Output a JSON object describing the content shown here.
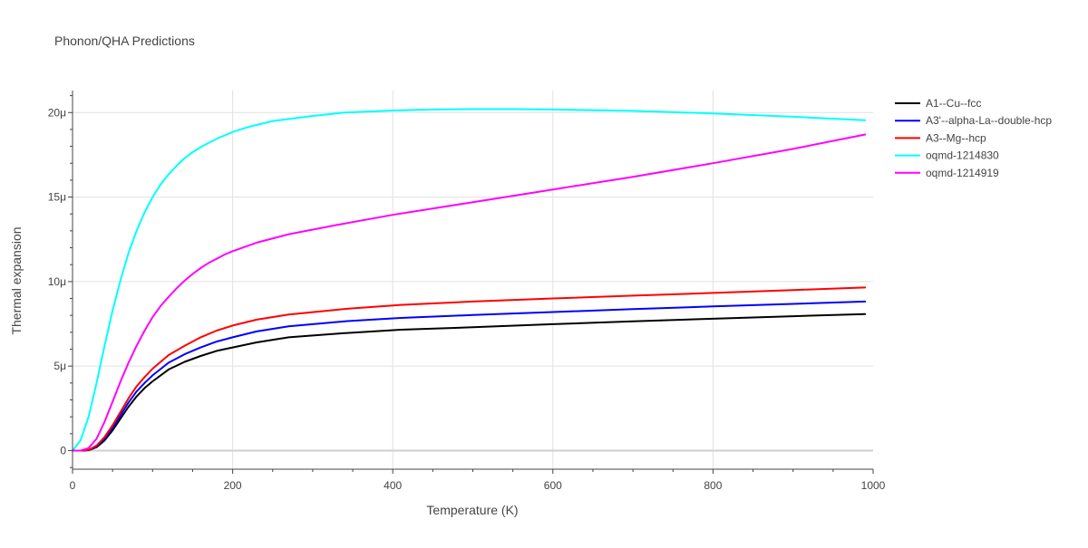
{
  "chart_data": {
    "type": "line",
    "title": "Phonon/QHA Predictions",
    "xlabel": "Temperature (K)",
    "ylabel": "Thermal expansion",
    "xlim": [
      0,
      1000
    ],
    "ylim": [
      -1.1,
      21.3
    ],
    "x_ticks": [
      {
        "value": 0,
        "label": "0"
      },
      {
        "value": 200,
        "label": "200"
      },
      {
        "value": 400,
        "label": "400"
      },
      {
        "value": 600,
        "label": "600"
      },
      {
        "value": 800,
        "label": "800"
      },
      {
        "value": 1000,
        "label": "1000"
      }
    ],
    "y_ticks": [
      {
        "value": 0,
        "label": "0"
      },
      {
        "value": 5,
        "label": "5μ"
      },
      {
        "value": 10,
        "label": "10μ"
      },
      {
        "value": 15,
        "label": "15μ"
      },
      {
        "value": 20,
        "label": "20μ"
      }
    ],
    "grid": true,
    "legend_position": "top-right",
    "series": [
      {
        "name": "A1--Cu--fcc",
        "color": "#000000",
        "x": [
          0,
          10,
          20,
          30,
          40,
          50,
          60,
          70,
          80,
          90,
          100,
          120,
          140,
          160,
          180,
          200,
          230,
          270,
          340,
          410,
          500,
          600,
          700,
          800,
          900,
          990
        ],
        "y": [
          0,
          0,
          0.02,
          0.2,
          0.6,
          1.2,
          1.9,
          2.6,
          3.2,
          3.7,
          4.1,
          4.8,
          5.25,
          5.6,
          5.9,
          6.1,
          6.4,
          6.7,
          6.95,
          7.15,
          7.3,
          7.48,
          7.65,
          7.8,
          7.95,
          8.08
        ]
      },
      {
        "name": "A3'--alpha-La--double-hcp",
        "color": "#0000ff",
        "x": [
          0,
          10,
          20,
          30,
          40,
          50,
          60,
          70,
          80,
          90,
          100,
          120,
          140,
          160,
          180,
          200,
          230,
          270,
          340,
          410,
          500,
          600,
          700,
          800,
          900,
          990
        ],
        "y": [
          0,
          0,
          0.03,
          0.25,
          0.7,
          1.35,
          2.1,
          2.85,
          3.5,
          4.0,
          4.45,
          5.2,
          5.7,
          6.1,
          6.45,
          6.7,
          7.05,
          7.35,
          7.65,
          7.85,
          8.02,
          8.2,
          8.37,
          8.53,
          8.68,
          8.82
        ]
      },
      {
        "name": "A3--Mg--hcp",
        "color": "#ff0000",
        "x": [
          0,
          10,
          20,
          30,
          40,
          50,
          60,
          70,
          80,
          90,
          100,
          120,
          140,
          160,
          180,
          200,
          230,
          270,
          340,
          410,
          500,
          600,
          700,
          800,
          900,
          990
        ],
        "y": [
          0,
          0,
          0.04,
          0.3,
          0.8,
          1.5,
          2.3,
          3.1,
          3.8,
          4.35,
          4.85,
          5.65,
          6.2,
          6.7,
          7.1,
          7.4,
          7.75,
          8.05,
          8.38,
          8.62,
          8.82,
          9.0,
          9.17,
          9.33,
          9.5,
          9.65
        ]
      },
      {
        "name": "oqmd-1214830",
        "color": "#00ffff",
        "x": [
          0,
          10,
          20,
          30,
          40,
          50,
          60,
          70,
          80,
          90,
          100,
          110,
          120,
          130,
          140,
          150,
          160,
          170,
          180,
          190,
          200,
          220,
          250,
          300,
          340,
          400,
          450,
          500,
          550,
          600,
          700,
          800,
          900,
          990
        ],
        "y": [
          0,
          0.6,
          2.0,
          4.0,
          6.2,
          8.3,
          10.1,
          11.7,
          13.0,
          14.1,
          15.0,
          15.75,
          16.35,
          16.85,
          17.3,
          17.65,
          17.95,
          18.2,
          18.45,
          18.65,
          18.85,
          19.15,
          19.5,
          19.8,
          20.0,
          20.12,
          20.18,
          20.2,
          20.2,
          20.18,
          20.1,
          19.95,
          19.75,
          19.55
        ]
      },
      {
        "name": "oqmd-1214919",
        "color": "#ff00ff",
        "x": [
          0,
          10,
          20,
          30,
          40,
          50,
          60,
          70,
          80,
          90,
          100,
          110,
          120,
          130,
          140,
          150,
          160,
          170,
          180,
          190,
          200,
          230,
          270,
          330,
          400,
          500,
          600,
          700,
          800,
          900,
          990
        ],
        "y": [
          0,
          0,
          0.15,
          0.7,
          1.7,
          2.9,
          4.1,
          5.2,
          6.2,
          7.1,
          7.9,
          8.55,
          9.1,
          9.6,
          10.05,
          10.45,
          10.8,
          11.1,
          11.35,
          11.6,
          11.8,
          12.3,
          12.8,
          13.35,
          13.95,
          14.7,
          15.45,
          16.2,
          17.0,
          17.85,
          18.7
        ]
      }
    ]
  }
}
